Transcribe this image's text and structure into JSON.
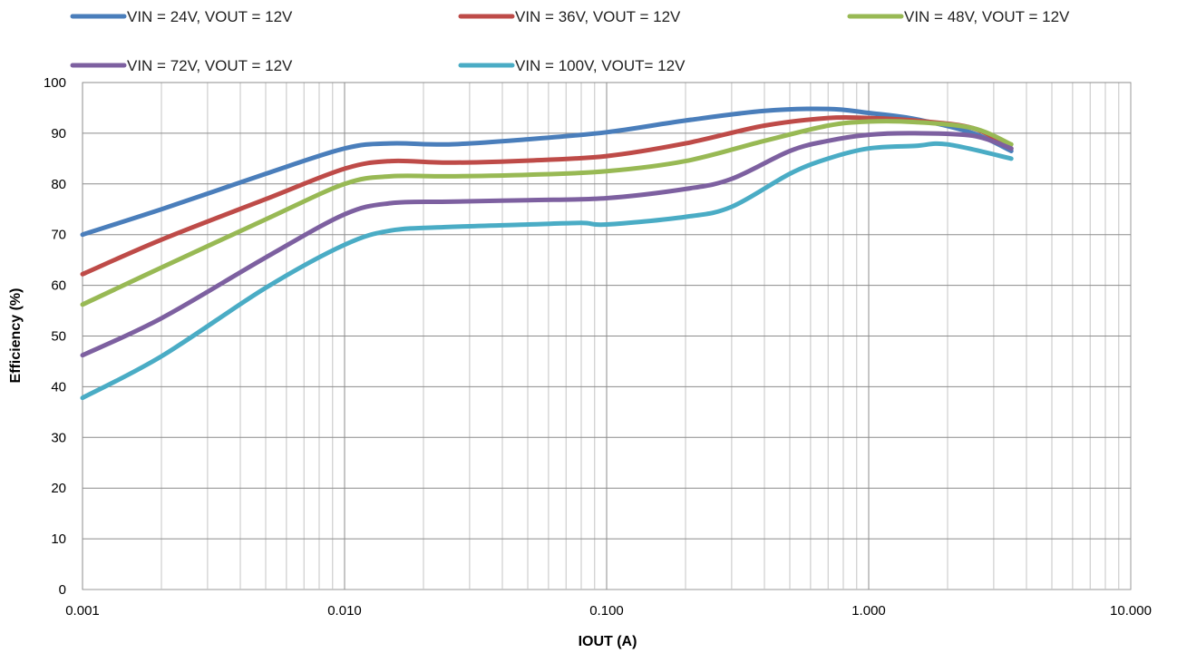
{
  "chart_data": {
    "type": "line",
    "xlabel": "IOUT (A)",
    "ylabel": "Efficiency (%)",
    "x_scale": "log",
    "xlim": [
      0.001,
      10
    ],
    "ylim": [
      0,
      100
    ],
    "grid": true,
    "legend_position": "top",
    "x_tick_labels": [
      "0.001",
      "0.010",
      "0.100",
      "1.000",
      "10.000"
    ],
    "y_tick_labels": [
      "0",
      "10",
      "20",
      "30",
      "40",
      "50",
      "60",
      "70",
      "80",
      "90",
      "100"
    ],
    "series": [
      {
        "name": "VIN = 24V, VOUT = 12V",
        "color": "#4a7ebb",
        "x": [
          0.001,
          0.002,
          0.005,
          0.01,
          0.015,
          0.025,
          0.05,
          0.1,
          0.2,
          0.4,
          0.7,
          1.0,
          1.5,
          2.5,
          3.5
        ],
        "y": [
          70,
          75,
          82,
          87,
          88,
          87.8,
          88.8,
          90.2,
          92.5,
          94.4,
          94.8,
          94,
          92.8,
          90,
          86.5
        ]
      },
      {
        "name": "VIN = 36V, VOUT = 12V",
        "color": "#be4b48",
        "x": [
          0.001,
          0.002,
          0.005,
          0.01,
          0.015,
          0.025,
          0.05,
          0.1,
          0.2,
          0.4,
          0.7,
          1.0,
          1.5,
          2.5,
          3.5
        ],
        "y": [
          62.2,
          69,
          77,
          83,
          84.5,
          84.2,
          84.6,
          85.5,
          88,
          91.5,
          93,
          93,
          92.5,
          91,
          87
        ]
      },
      {
        "name": "VIN = 48V, VOUT = 12V",
        "color": "#98b954",
        "x": [
          0.001,
          0.002,
          0.005,
          0.01,
          0.015,
          0.025,
          0.05,
          0.1,
          0.2,
          0.4,
          0.7,
          1.0,
          1.5,
          2.5,
          3.5
        ],
        "y": [
          56.2,
          63.5,
          73,
          80,
          81.5,
          81.5,
          81.8,
          82.5,
          84.5,
          88.5,
          91.5,
          92.3,
          92.2,
          91,
          87.8
        ]
      },
      {
        "name": "VIN = 72V, VOUT = 12V",
        "color": "#7d60a0",
        "x": [
          0.001,
          0.002,
          0.005,
          0.01,
          0.015,
          0.025,
          0.05,
          0.1,
          0.2,
          0.3,
          0.5,
          0.7,
          1.0,
          1.5,
          2.5,
          3.5
        ],
        "y": [
          46.2,
          53.5,
          65.5,
          74,
          76.2,
          76.5,
          76.8,
          77.2,
          79,
          81,
          86.5,
          88.5,
          89.7,
          90,
          89.5,
          87
        ]
      },
      {
        "name": "VIN = 100V, VOUT= 12V",
        "color": "#4aacc5",
        "x": [
          0.001,
          0.002,
          0.005,
          0.01,
          0.015,
          0.025,
          0.05,
          0.08,
          0.1,
          0.2,
          0.3,
          0.5,
          0.7,
          1.0,
          1.5,
          2.0,
          3.5
        ],
        "y": [
          37.8,
          46,
          59.5,
          68,
          70.8,
          71.5,
          72,
          72.3,
          72,
          73.5,
          75.5,
          82,
          85,
          87,
          87.5,
          87.8,
          85
        ]
      }
    ]
  }
}
